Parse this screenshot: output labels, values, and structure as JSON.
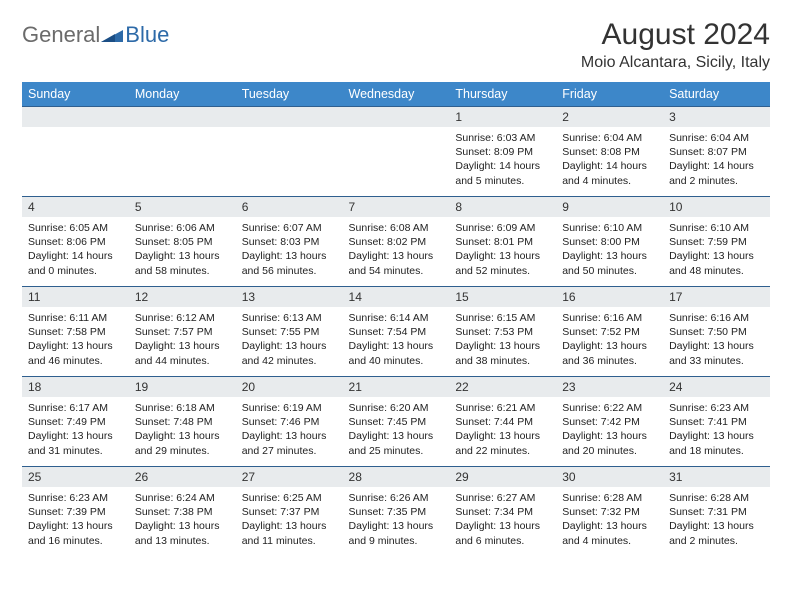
{
  "logo": {
    "text1": "General",
    "text2": "Blue"
  },
  "title": "August 2024",
  "location": "Moio Alcantara, Sicily, Italy",
  "colors": {
    "header_bg": "#3d87c9",
    "header_text": "#ffffff",
    "daynum_bg": "#e8ebed",
    "daynum_border": "#2f5f8f",
    "logo_gray": "#6b6b6b",
    "logo_blue": "#2d6aa8"
  },
  "weekdays": [
    "Sunday",
    "Monday",
    "Tuesday",
    "Wednesday",
    "Thursday",
    "Friday",
    "Saturday"
  ],
  "weeks": [
    [
      {
        "n": "",
        "sr": "",
        "ss": "",
        "dl": ""
      },
      {
        "n": "",
        "sr": "",
        "ss": "",
        "dl": ""
      },
      {
        "n": "",
        "sr": "",
        "ss": "",
        "dl": ""
      },
      {
        "n": "",
        "sr": "",
        "ss": "",
        "dl": ""
      },
      {
        "n": "1",
        "sr": "6:03 AM",
        "ss": "8:09 PM",
        "dl": "14 hours and 5 minutes."
      },
      {
        "n": "2",
        "sr": "6:04 AM",
        "ss": "8:08 PM",
        "dl": "14 hours and 4 minutes."
      },
      {
        "n": "3",
        "sr": "6:04 AM",
        "ss": "8:07 PM",
        "dl": "14 hours and 2 minutes."
      }
    ],
    [
      {
        "n": "4",
        "sr": "6:05 AM",
        "ss": "8:06 PM",
        "dl": "14 hours and 0 minutes."
      },
      {
        "n": "5",
        "sr": "6:06 AM",
        "ss": "8:05 PM",
        "dl": "13 hours and 58 minutes."
      },
      {
        "n": "6",
        "sr": "6:07 AM",
        "ss": "8:03 PM",
        "dl": "13 hours and 56 minutes."
      },
      {
        "n": "7",
        "sr": "6:08 AM",
        "ss": "8:02 PM",
        "dl": "13 hours and 54 minutes."
      },
      {
        "n": "8",
        "sr": "6:09 AM",
        "ss": "8:01 PM",
        "dl": "13 hours and 52 minutes."
      },
      {
        "n": "9",
        "sr": "6:10 AM",
        "ss": "8:00 PM",
        "dl": "13 hours and 50 minutes."
      },
      {
        "n": "10",
        "sr": "6:10 AM",
        "ss": "7:59 PM",
        "dl": "13 hours and 48 minutes."
      }
    ],
    [
      {
        "n": "11",
        "sr": "6:11 AM",
        "ss": "7:58 PM",
        "dl": "13 hours and 46 minutes."
      },
      {
        "n": "12",
        "sr": "6:12 AM",
        "ss": "7:57 PM",
        "dl": "13 hours and 44 minutes."
      },
      {
        "n": "13",
        "sr": "6:13 AM",
        "ss": "7:55 PM",
        "dl": "13 hours and 42 minutes."
      },
      {
        "n": "14",
        "sr": "6:14 AM",
        "ss": "7:54 PM",
        "dl": "13 hours and 40 minutes."
      },
      {
        "n": "15",
        "sr": "6:15 AM",
        "ss": "7:53 PM",
        "dl": "13 hours and 38 minutes."
      },
      {
        "n": "16",
        "sr": "6:16 AM",
        "ss": "7:52 PM",
        "dl": "13 hours and 36 minutes."
      },
      {
        "n": "17",
        "sr": "6:16 AM",
        "ss": "7:50 PM",
        "dl": "13 hours and 33 minutes."
      }
    ],
    [
      {
        "n": "18",
        "sr": "6:17 AM",
        "ss": "7:49 PM",
        "dl": "13 hours and 31 minutes."
      },
      {
        "n": "19",
        "sr": "6:18 AM",
        "ss": "7:48 PM",
        "dl": "13 hours and 29 minutes."
      },
      {
        "n": "20",
        "sr": "6:19 AM",
        "ss": "7:46 PM",
        "dl": "13 hours and 27 minutes."
      },
      {
        "n": "21",
        "sr": "6:20 AM",
        "ss": "7:45 PM",
        "dl": "13 hours and 25 minutes."
      },
      {
        "n": "22",
        "sr": "6:21 AM",
        "ss": "7:44 PM",
        "dl": "13 hours and 22 minutes."
      },
      {
        "n": "23",
        "sr": "6:22 AM",
        "ss": "7:42 PM",
        "dl": "13 hours and 20 minutes."
      },
      {
        "n": "24",
        "sr": "6:23 AM",
        "ss": "7:41 PM",
        "dl": "13 hours and 18 minutes."
      }
    ],
    [
      {
        "n": "25",
        "sr": "6:23 AM",
        "ss": "7:39 PM",
        "dl": "13 hours and 16 minutes."
      },
      {
        "n": "26",
        "sr": "6:24 AM",
        "ss": "7:38 PM",
        "dl": "13 hours and 13 minutes."
      },
      {
        "n": "27",
        "sr": "6:25 AM",
        "ss": "7:37 PM",
        "dl": "13 hours and 11 minutes."
      },
      {
        "n": "28",
        "sr": "6:26 AM",
        "ss": "7:35 PM",
        "dl": "13 hours and 9 minutes."
      },
      {
        "n": "29",
        "sr": "6:27 AM",
        "ss": "7:34 PM",
        "dl": "13 hours and 6 minutes."
      },
      {
        "n": "30",
        "sr": "6:28 AM",
        "ss": "7:32 PM",
        "dl": "13 hours and 4 minutes."
      },
      {
        "n": "31",
        "sr": "6:28 AM",
        "ss": "7:31 PM",
        "dl": "13 hours and 2 minutes."
      }
    ]
  ],
  "labels": {
    "sunrise": "Sunrise:",
    "sunset": "Sunset:",
    "daylight": "Daylight:"
  }
}
